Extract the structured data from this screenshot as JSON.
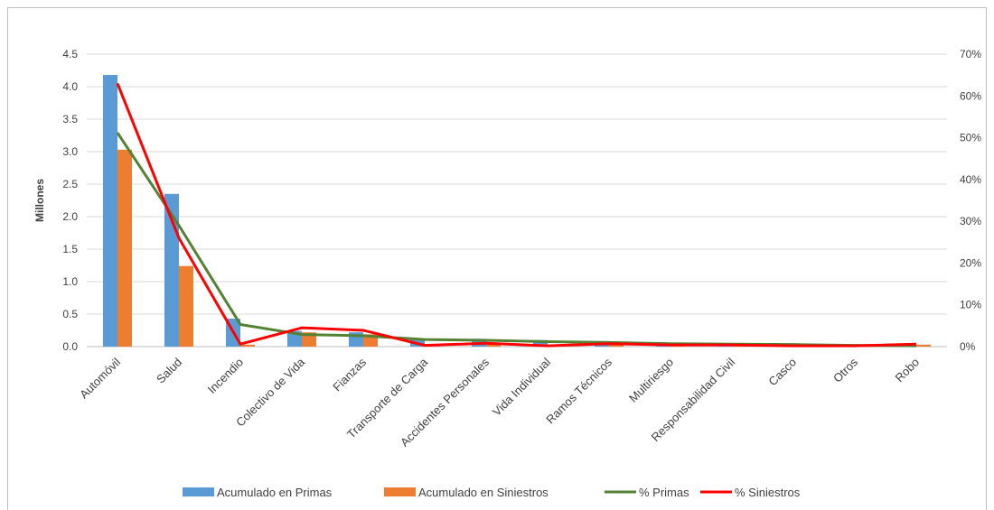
{
  "chart_data": {
    "type": "bar",
    "ylabel": "Millones",
    "ylim": [
      0,
      4.5
    ],
    "y_ticks": [
      "0.0",
      "0.5",
      "1.0",
      "1.5",
      "2.0",
      "2.5",
      "3.0",
      "3.5",
      "4.0",
      "4.5"
    ],
    "y2lim": [
      0,
      0.7
    ],
    "y2_ticks": [
      "0%",
      "10%",
      "20%",
      "30%",
      "40%",
      "50%",
      "60%",
      "70%"
    ],
    "grid": true,
    "legend_position": "bottom",
    "categories": [
      "Automóvil",
      "Salud",
      "Incendio",
      "Colectivo de Vida",
      "Fianzas",
      "Transporte de Carga",
      "Accidentes Personales",
      "Vida Individual",
      "Ramos Técnicos",
      "Multiriesgo",
      "Responsabilidad Civil",
      "Casco",
      "Otros",
      "Robo"
    ],
    "series": [
      {
        "name": "Acumulado en Primas",
        "type": "bar",
        "axis": "left",
        "color": "#5b9bd5",
        "values": [
          4.18,
          2.35,
          0.43,
          0.24,
          0.22,
          0.13,
          0.12,
          0.1,
          0.08,
          0.06,
          0.05,
          0.04,
          0.02,
          0.02
        ]
      },
      {
        "name": "Acumulado en Siniestros",
        "type": "bar",
        "axis": "left",
        "color": "#ed7d31",
        "values": [
          3.03,
          1.24,
          0.03,
          0.22,
          0.19,
          0.02,
          0.05,
          0.01,
          0.03,
          0.02,
          0.02,
          0.01,
          0.01,
          0.03
        ]
      },
      {
        "name": "% Primas",
        "type": "line",
        "axis": "right",
        "color": "#548235",
        "values": [
          0.512,
          0.29,
          0.053,
          0.029,
          0.026,
          0.017,
          0.015,
          0.012,
          0.01,
          0.007,
          0.006,
          0.005,
          0.003,
          0.002
        ]
      },
      {
        "name": "% Siniestros",
        "type": "line",
        "axis": "right",
        "color": "#ff0000",
        "values": [
          0.63,
          0.26,
          0.006,
          0.045,
          0.039,
          0.003,
          0.008,
          0.002,
          0.007,
          0.004,
          0.004,
          0.002,
          0.002,
          0.006
        ]
      }
    ]
  }
}
